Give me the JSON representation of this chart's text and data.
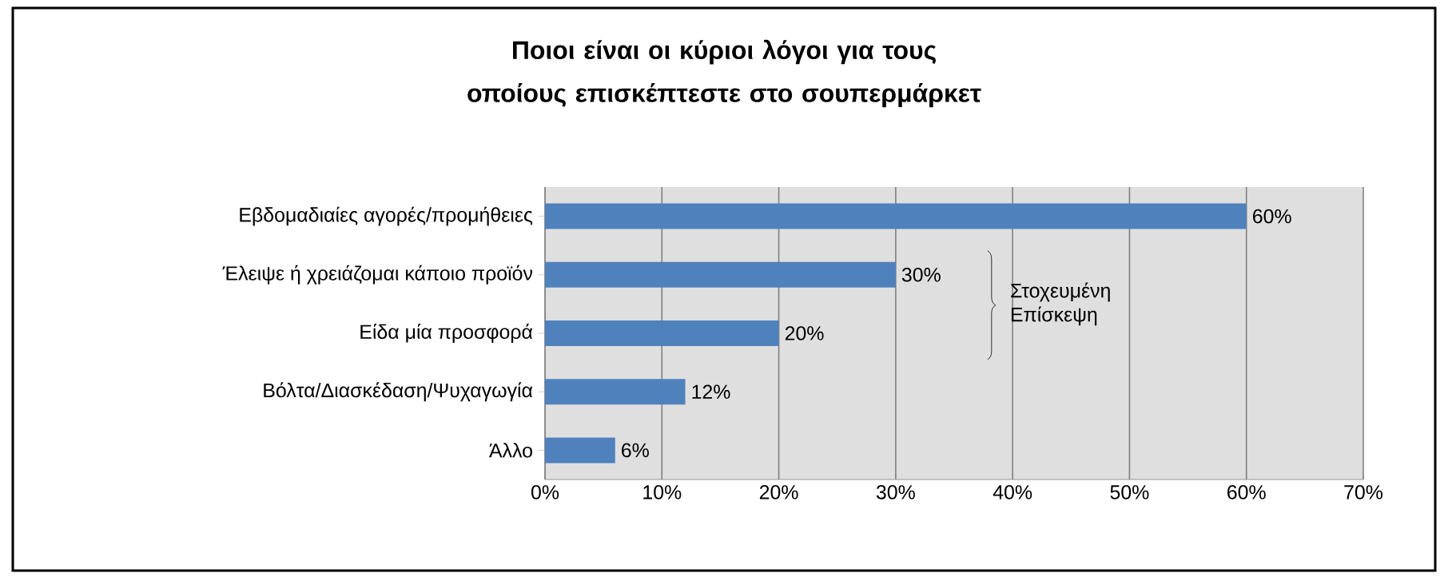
{
  "chart_data": {
    "type": "bar",
    "orientation": "horizontal",
    "title": "Ποιοι είναι οι κύριοι λόγοι για τους οποίους επισκέπτεστε στο σουπερμάρκετ",
    "categories": [
      "Εβδομαδιαίες αγορές/προμήθειες",
      "Έλειψε ή χρειάζομαι κάποιο προϊόν",
      "Είδα μία προσφορά",
      "Βόλτα/Διασκέδαση/Ψυχαγωγία",
      "Άλλο"
    ],
    "values": [
      60,
      30,
      20,
      12,
      6
    ],
    "value_labels": [
      "60%",
      "30%",
      "20%",
      "12%",
      "6%"
    ],
    "color": "#4f81bd",
    "xlim": [
      0,
      70
    ],
    "xticks": [
      {
        "value": 0,
        "label": "0%"
      },
      {
        "value": 10,
        "label": "10%"
      },
      {
        "value": 20,
        "label": "20%"
      },
      {
        "value": 30,
        "label": "30%"
      },
      {
        "value": 40,
        "label": "40%"
      },
      {
        "value": 50,
        "label": "50%"
      },
      {
        "value": 60,
        "label": "60%"
      },
      {
        "value": 70,
        "label": "70%"
      }
    ],
    "grid": "x",
    "annotations": [
      "Στοχευμένη Επίσκεψη"
    ]
  }
}
